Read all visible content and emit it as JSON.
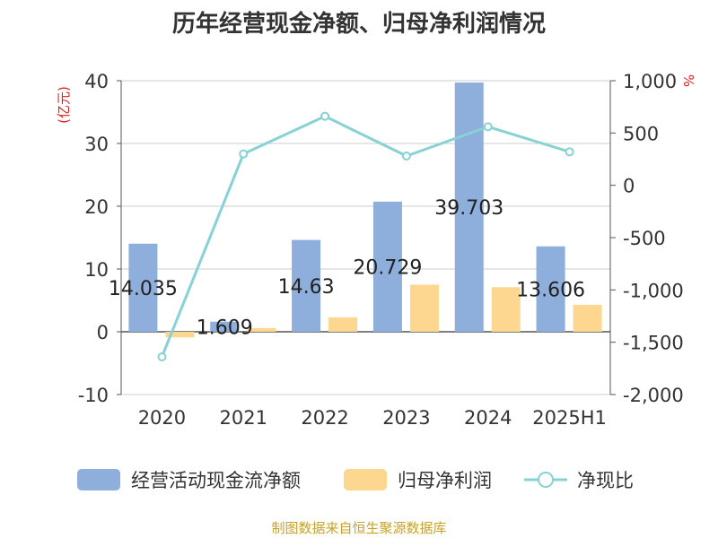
{
  "title": "历年经营现金净额、归母净利润情况",
  "source": "制图数据来自恒生聚源数据库",
  "chart_data": {
    "type": "bar",
    "categories": [
      "2020",
      "2021",
      "2022",
      "2023",
      "2024",
      "2025H1"
    ],
    "series": [
      {
        "name": "经营活动现金流净额",
        "type": "bar",
        "axis": "left",
        "color": "#8eaedb",
        "values": [
          14.035,
          1.609,
          14.63,
          20.729,
          39.703,
          13.606
        ],
        "data_labels": [
          "14.035",
          "1.609",
          "14.63",
          "20.729",
          "39.703",
          "13.606"
        ]
      },
      {
        "name": "归母净利润",
        "type": "bar",
        "axis": "left",
        "color": "#fdd790",
        "values": [
          -0.9,
          0.6,
          2.3,
          7.5,
          7.1,
          4.3
        ]
      },
      {
        "name": "净现比",
        "type": "line",
        "axis": "right",
        "color": "#86d2d4",
        "values": [
          -1640,
          300,
          660,
          280,
          560,
          320
        ]
      }
    ],
    "y_left": {
      "unit_label": "(亿元)",
      "unit_color": "#e02020",
      "ylim": [
        -10,
        40
      ],
      "ticks": [
        40,
        30,
        20,
        10,
        0,
        -10
      ],
      "tick_labels": [
        "40",
        "30",
        "20",
        "10",
        "0",
        "-10"
      ]
    },
    "y_right": {
      "unit_label": "%",
      "unit_color": "#e02020",
      "ylim": [
        -2000,
        1000
      ],
      "ticks": [
        1000,
        500,
        0,
        -500,
        -1000,
        -1500,
        -2000
      ],
      "tick_labels": [
        "1,000",
        "500",
        "0",
        "-500",
        "-1,000",
        "-1,500",
        "-2,000"
      ]
    },
    "grid": true,
    "legend_position": "bottom"
  }
}
